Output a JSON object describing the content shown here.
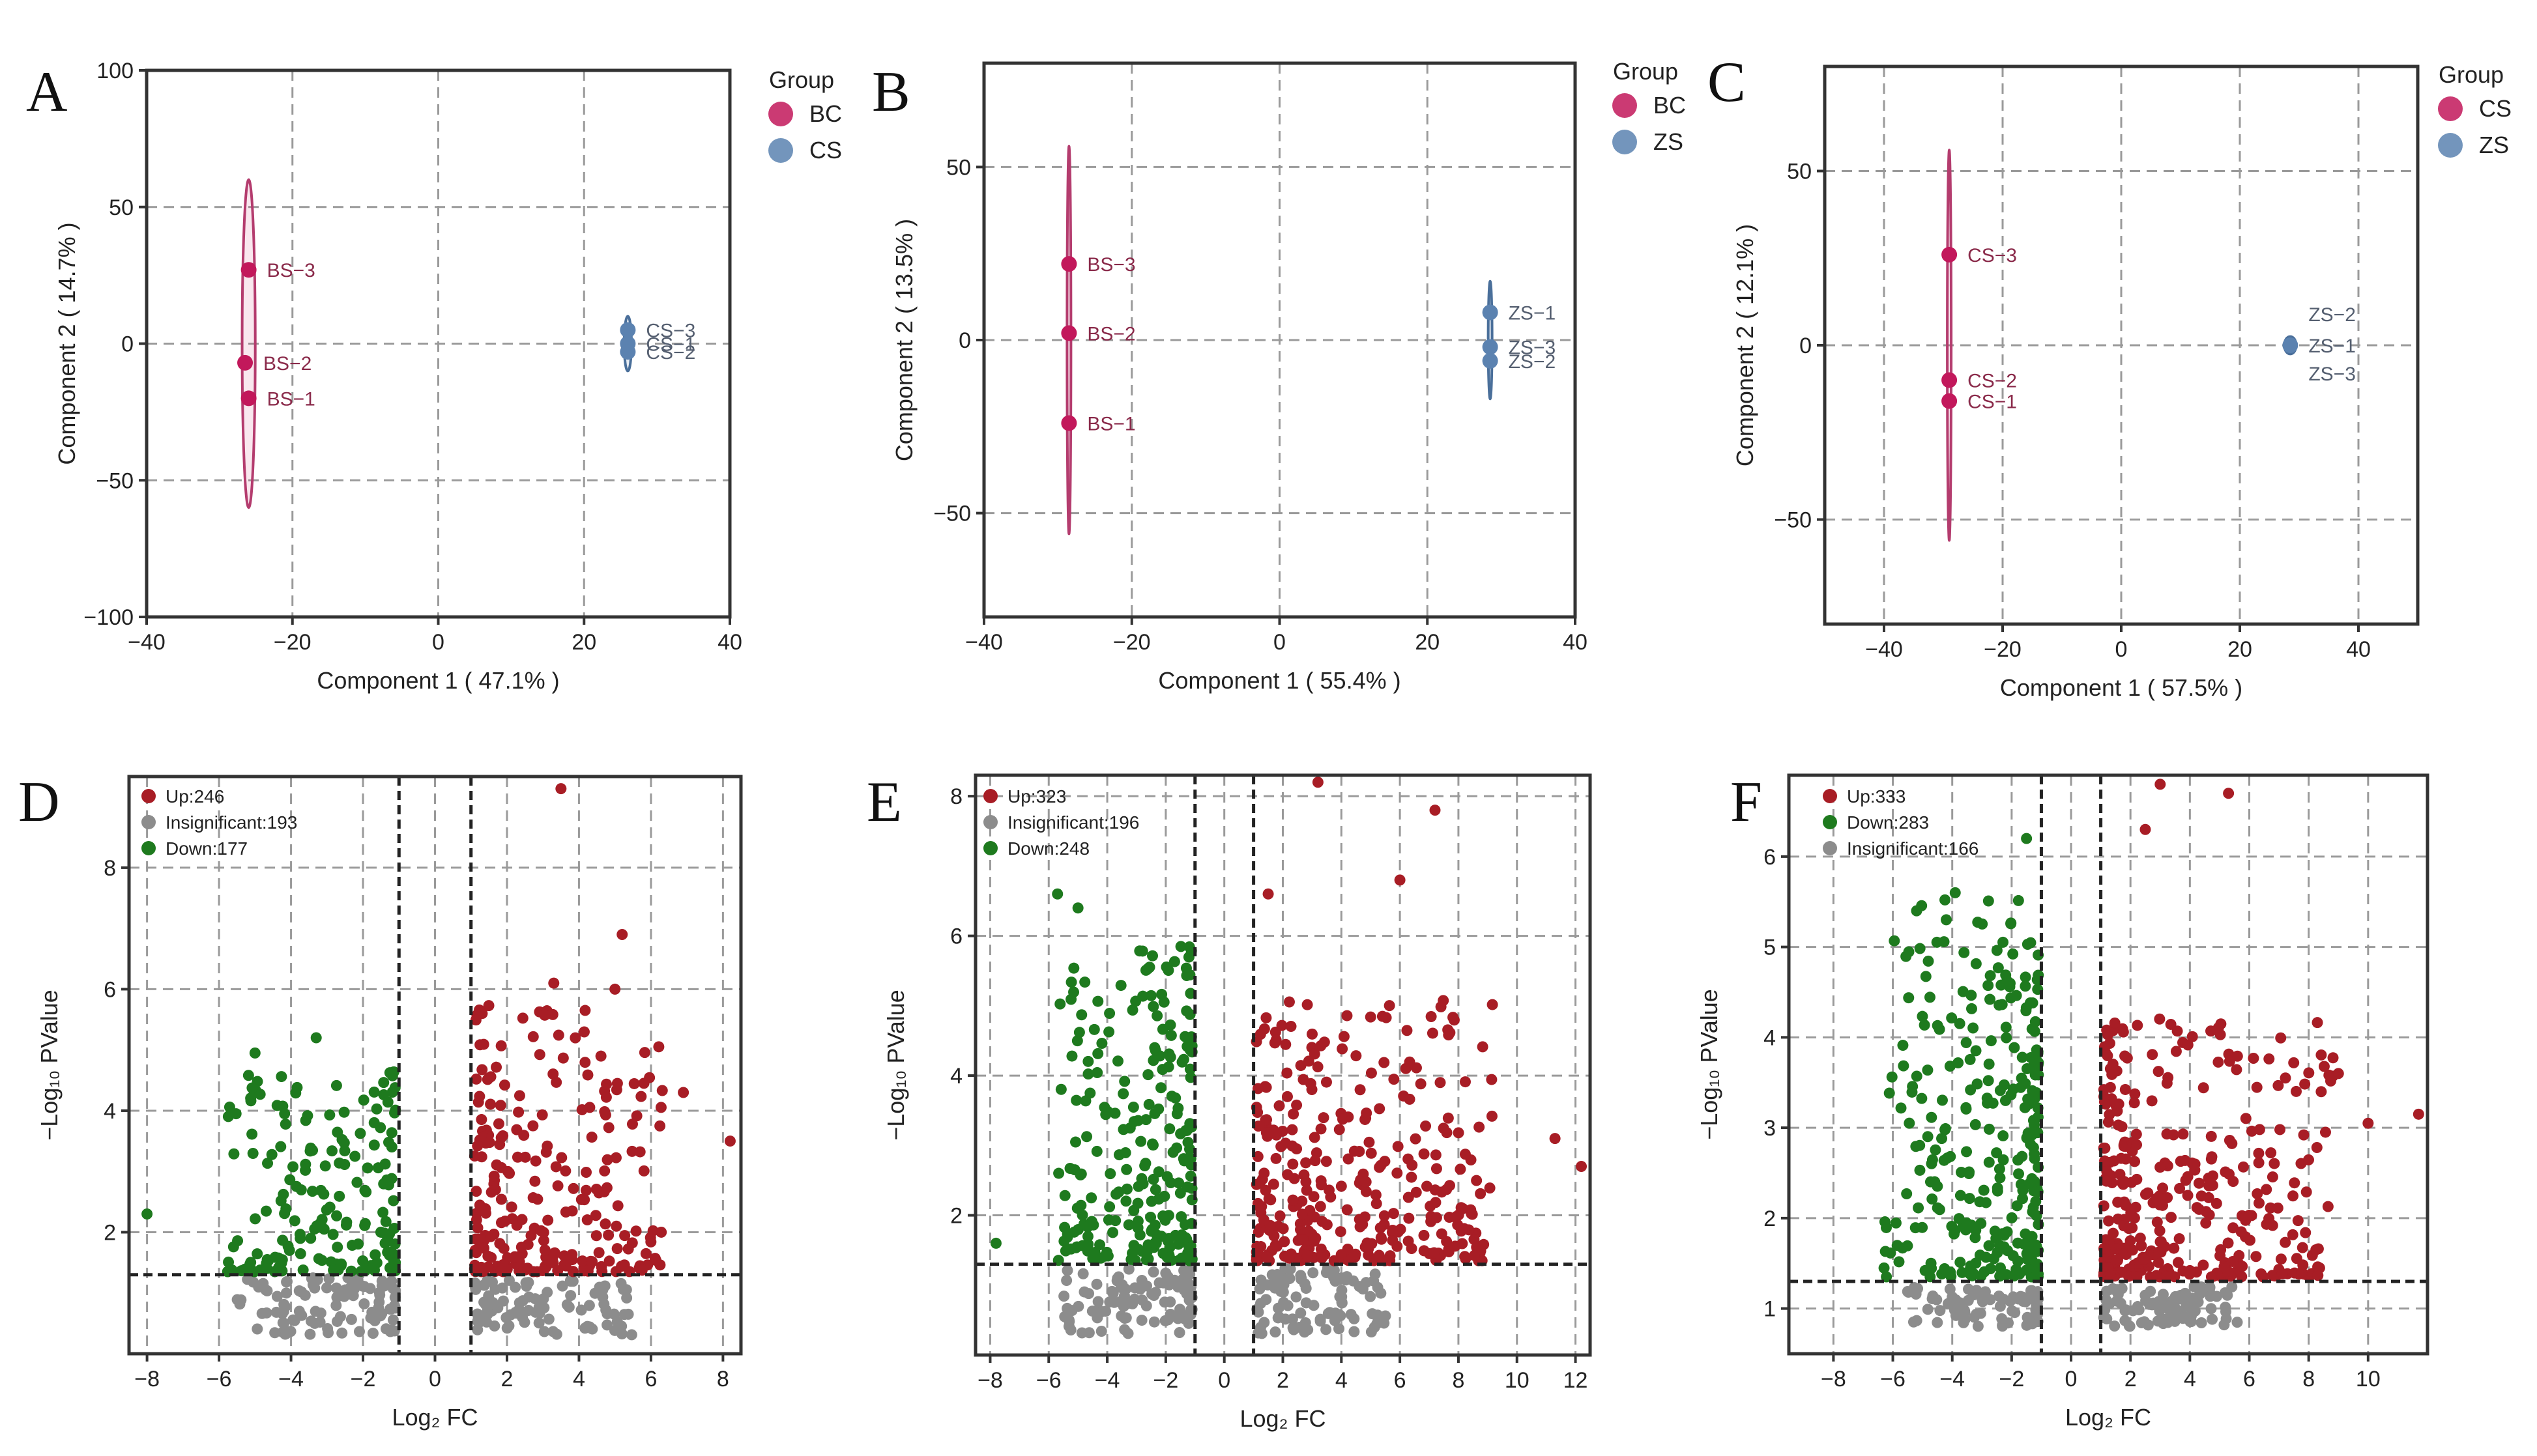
{
  "colors": {
    "pink": "#c2185b",
    "pink_line": "#b43c6e",
    "blue": "#5b82b0",
    "blue_line": "#4a6f9a",
    "up": "#a81d25",
    "down": "#1e7a1e",
    "insig": "#8c8c8c",
    "pink_label": "#8a2a4a",
    "blue_label": "#555f70"
  },
  "chart_data": [
    {
      "panel": "A",
      "type": "scatter",
      "xlabel": "Component 1 ( 47.1% )",
      "ylabel": "Component 2 ( 14.7% )",
      "xlim": [
        -40,
        40
      ],
      "ylim": [
        -100,
        100
      ],
      "xticks": [
        -40,
        -20,
        0,
        20,
        40
      ],
      "yticks": [
        -100,
        -50,
        0,
        50,
        100
      ],
      "xgrid": [
        -20,
        0,
        20
      ],
      "ygrid": [
        -50,
        0,
        50
      ],
      "legend": {
        "title": "Group",
        "entries": [
          {
            "label": "BC",
            "color": "pink"
          },
          {
            "label": "CS",
            "color": "blue"
          }
        ]
      },
      "ellipses": [
        {
          "cx": -26,
          "cy": 0,
          "rx": 0.9,
          "ry": 60,
          "color": "pink"
        },
        {
          "cx": 26,
          "cy": 0,
          "rx": 0.5,
          "ry": 10,
          "color": "blue"
        }
      ],
      "points": [
        {
          "x": -26,
          "y": 27,
          "label": "BS−3",
          "color": "pink"
        },
        {
          "x": -26.5,
          "y": -7,
          "label": "BS−2",
          "color": "pink"
        },
        {
          "x": -26,
          "y": -20,
          "label": "BS−1",
          "color": "pink"
        },
        {
          "x": 26,
          "y": 5,
          "label": "CS−3",
          "color": "blue"
        },
        {
          "x": 26,
          "y": 0,
          "label": "CS−1",
          "color": "blue"
        },
        {
          "x": 26,
          "y": -3,
          "label": "CS−2",
          "color": "blue"
        }
      ]
    },
    {
      "panel": "B",
      "type": "scatter",
      "xlabel": "Component 1 ( 55.4% )",
      "ylabel": "Component 2 ( 13.5% )",
      "xlim": [
        -40,
        40
      ],
      "ylim": [
        -80,
        80
      ],
      "xticks": [
        -40,
        -20,
        0,
        20,
        40
      ],
      "yticks": [
        -50,
        0,
        50
      ],
      "xgrid": [
        -20,
        0,
        20
      ],
      "ygrid": [
        -50,
        0,
        50
      ],
      "legend": {
        "title": "Group",
        "entries": [
          {
            "label": "BC",
            "color": "pink"
          },
          {
            "label": "ZS",
            "color": "blue"
          }
        ]
      },
      "ellipses": [
        {
          "cx": -28.5,
          "cy": 0,
          "rx": 0.2,
          "ry": 56,
          "color": "pink"
        },
        {
          "cx": 28.5,
          "cy": 0,
          "rx": 0.2,
          "ry": 17,
          "color": "blue"
        }
      ],
      "points": [
        {
          "x": -28.5,
          "y": 22,
          "label": "BS−3",
          "color": "pink"
        },
        {
          "x": -28.5,
          "y": 2,
          "label": "BS−2",
          "color": "pink"
        },
        {
          "x": -28.5,
          "y": -24,
          "label": "BS−1",
          "color": "pink"
        },
        {
          "x": 28.5,
          "y": 8,
          "label": "ZS−1",
          "color": "blue"
        },
        {
          "x": 28.5,
          "y": -2,
          "label": "ZS−3",
          "color": "blue"
        },
        {
          "x": 28.5,
          "y": -6,
          "label": "ZS−2",
          "color": "blue"
        }
      ]
    },
    {
      "panel": "C",
      "type": "scatter",
      "xlabel": "Component 1 ( 57.5% )",
      "ylabel": "Component 2 ( 12.1% )",
      "xlim": [
        -50,
        50
      ],
      "ylim": [
        -80,
        80
      ],
      "xticks": [
        -40,
        -20,
        0,
        20,
        40
      ],
      "yticks": [
        -50,
        0,
        50
      ],
      "xgrid": [
        -40,
        -20,
        0,
        20,
        40
      ],
      "ygrid": [
        -50,
        0,
        50
      ],
      "legend": {
        "title": "Group",
        "entries": [
          {
            "label": "CS",
            "color": "pink"
          },
          {
            "label": "ZS",
            "color": "blue"
          }
        ]
      },
      "ellipses": [
        {
          "cx": -29,
          "cy": 0,
          "rx": 0.2,
          "ry": 56,
          "color": "pink"
        },
        {
          "cx": 28.5,
          "cy": 0,
          "rx": 1.0,
          "ry": 2.5,
          "color": "blue"
        }
      ],
      "points": [
        {
          "x": -29,
          "y": 26,
          "label": "CS−3",
          "color": "pink"
        },
        {
          "x": -29,
          "y": -10,
          "label": "CS−2",
          "color": "pink"
        },
        {
          "x": -29,
          "y": -16,
          "label": "CS−1",
          "color": "pink"
        },
        {
          "x": 28.5,
          "y": 9,
          "label": "ZS−2",
          "color": "blue",
          "marker": false
        },
        {
          "x": 28.5,
          "y": 0,
          "label": "ZS−1",
          "color": "blue"
        },
        {
          "x": 28.5,
          "y": -8,
          "label": "ZS−3",
          "color": "blue",
          "marker": false
        }
      ]
    },
    {
      "panel": "D",
      "type": "scatter",
      "kind": "volcano",
      "xlabel": "Log₂ FC",
      "ylabel": "−Log₁₀ PValue",
      "xlim": [
        -8.5,
        8.5
      ],
      "ylim": [
        0,
        9.5
      ],
      "xticks": [
        -8,
        -6,
        -4,
        -2,
        0,
        2,
        4,
        6,
        8
      ],
      "yticks": [
        2,
        4,
        6,
        8
      ],
      "xgrid": [
        -8,
        -6,
        -4,
        -2,
        0,
        2,
        4,
        6,
        8
      ],
      "ygrid": [
        2,
        4,
        6,
        8
      ],
      "thresholds": {
        "fc": 1,
        "p": 1.3
      },
      "legend": [
        {
          "label": "Up:246",
          "color": "up"
        },
        {
          "label": "Insignificant:193",
          "color": "insig"
        },
        {
          "label": "Down:177",
          "color": "down"
        }
      ],
      "sim": {
        "up": 246,
        "down": 177,
        "insig": 193,
        "upXmax": 8.3,
        "downXmin": -8.1,
        "upYmax": 9.3,
        "downYmax": 5.2
      },
      "highlights": [
        {
          "x": 3.5,
          "y": 9.3,
          "g": "up"
        },
        {
          "x": 5.2,
          "y": 6.9,
          "g": "up"
        },
        {
          "x": 3.3,
          "y": 6.1,
          "g": "up"
        },
        {
          "x": 5.0,
          "y": 6.0,
          "g": "up"
        },
        {
          "x": 6.9,
          "y": 4.3,
          "g": "up"
        },
        {
          "x": 8.2,
          "y": 3.5,
          "g": "up"
        },
        {
          "x": -5.0,
          "y": 4.95,
          "g": "down"
        },
        {
          "x": -8.0,
          "y": 2.3,
          "g": "down"
        },
        {
          "x": -3.3,
          "y": 5.2,
          "g": "down"
        }
      ]
    },
    {
      "panel": "E",
      "type": "scatter",
      "kind": "volcano",
      "xlabel": "Log₂ FC",
      "ylabel": "−Log₁₀ PValue",
      "xlim": [
        -8.5,
        12.5
      ],
      "ylim": [
        0,
        8.3
      ],
      "xticks": [
        -8,
        -6,
        -4,
        -2,
        0,
        2,
        4,
        6,
        8,
        10,
        12
      ],
      "yticks": [
        2,
        4,
        6,
        8
      ],
      "xgrid": [
        -8,
        -6,
        -4,
        -2,
        0,
        2,
        4,
        6,
        8,
        10,
        12
      ],
      "ygrid": [
        2,
        4,
        6,
        8
      ],
      "thresholds": {
        "fc": 1,
        "p": 1.3
      },
      "legend": [
        {
          "label": "Up:323",
          "color": "up"
        },
        {
          "label": "Insignificant:196",
          "color": "insig"
        },
        {
          "label": "Down:248",
          "color": "down"
        }
      ],
      "sim": {
        "up": 323,
        "down": 248,
        "insig": 196,
        "upXmax": 12.2,
        "downXmin": -8.0,
        "upYmax": 8.2,
        "downYmax": 6.6
      },
      "highlights": [
        {
          "x": 3.2,
          "y": 8.2,
          "g": "up"
        },
        {
          "x": 7.2,
          "y": 7.8,
          "g": "up"
        },
        {
          "x": 6.0,
          "y": 6.8,
          "g": "up"
        },
        {
          "x": 11.3,
          "y": 3.1,
          "g": "up"
        },
        {
          "x": 12.2,
          "y": 2.7,
          "g": "up"
        },
        {
          "x": 1.5,
          "y": 6.6,
          "g": "up"
        },
        {
          "x": -5.7,
          "y": 6.6,
          "g": "down"
        },
        {
          "x": -5.0,
          "y": 6.4,
          "g": "down"
        },
        {
          "x": -7.8,
          "y": 1.6,
          "g": "down"
        }
      ]
    },
    {
      "panel": "F",
      "type": "scatter",
      "kind": "volcano",
      "xlabel": "Log₂ FC",
      "ylabel": "−Log₁₀ PValue",
      "xlim": [
        -9.5,
        12
      ],
      "ylim": [
        0.5,
        6.9
      ],
      "xticks": [
        -8,
        -6,
        -4,
        -2,
        0,
        2,
        4,
        6,
        8,
        10
      ],
      "yticks": [
        1,
        2,
        3,
        4,
        5,
        6
      ],
      "xgrid": [
        -8,
        -6,
        -4,
        -2,
        0,
        2,
        4,
        6,
        8,
        10
      ],
      "ygrid": [
        1,
        2,
        3,
        4,
        5,
        6
      ],
      "thresholds": {
        "fc": 1,
        "p": 1.3
      },
      "legend": [
        {
          "label": "Up:333",
          "color": "up"
        },
        {
          "label": "Down:283",
          "color": "down"
        },
        {
          "label": "Insignificant:166",
          "color": "insig"
        }
      ],
      "sim": {
        "up": 333,
        "down": 283,
        "insig": 166,
        "upXmax": 11.7,
        "downXmin": -8.9,
        "upYmax": 6.8,
        "downYmax": 6.2
      },
      "highlights": [
        {
          "x": 3.0,
          "y": 6.8,
          "g": "up"
        },
        {
          "x": 5.3,
          "y": 6.7,
          "g": "up"
        },
        {
          "x": 11.7,
          "y": 3.15,
          "g": "up"
        },
        {
          "x": 10.0,
          "y": 3.05,
          "g": "up"
        },
        {
          "x": 9.0,
          "y": 3.6,
          "g": "up"
        },
        {
          "x": 2.5,
          "y": 6.3,
          "g": "up"
        },
        {
          "x": -1.5,
          "y": 6.2,
          "g": "down"
        },
        {
          "x": -3.9,
          "y": 5.6,
          "g": "down"
        },
        {
          "x": -5.2,
          "y": 5.4,
          "g": "down"
        }
      ]
    }
  ]
}
